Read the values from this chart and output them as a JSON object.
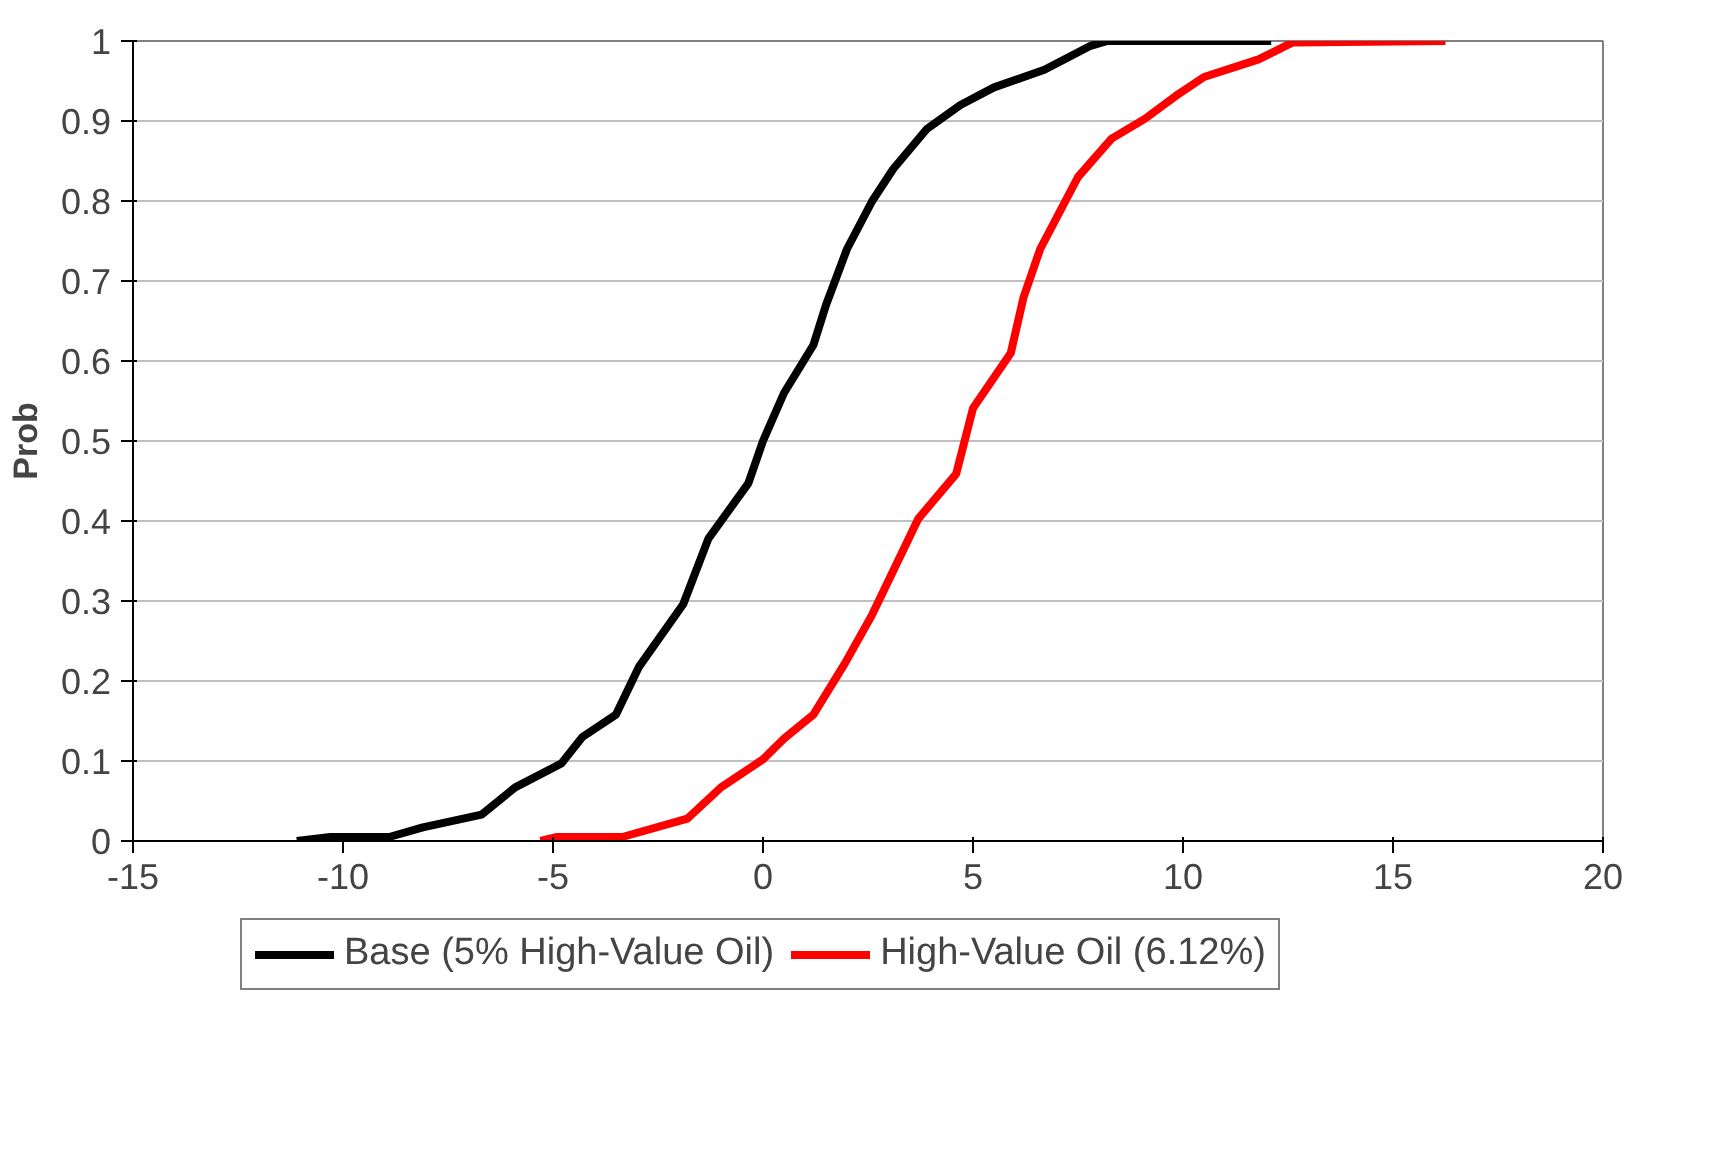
{
  "chart_data": {
    "type": "line",
    "ylabel": "Prob",
    "xlim": [
      -15,
      20
    ],
    "xticks": [
      -15,
      -10,
      -5,
      0,
      5,
      10,
      15,
      20
    ],
    "ylim": [
      0,
      1
    ],
    "yticks": [
      0,
      0.1,
      0.2,
      0.3,
      0.4,
      0.5,
      0.6,
      0.7,
      0.8,
      0.9,
      1
    ],
    "grid": "y",
    "legend": "bottom",
    "marker": "none",
    "line_style": "solid",
    "series": [
      {
        "name": "Base (5% High-Value Oil)",
        "color": "#000000",
        "x": [
          -11.1,
          -10.3,
          -8.9,
          -8.1,
          -6.7,
          -5.9,
          -4.8,
          -4.3,
          -3.5,
          -2.95,
          -1.9,
          -1.3,
          -0.35,
          0,
          0.5,
          1.2,
          1.5,
          2.0,
          2.6,
          3.1,
          3.9,
          4.7,
          5.5,
          6.7,
          7.8,
          8.2,
          12.1
        ],
        "values": [
          0,
          0.005,
          0.005,
          0.017,
          0.033,
          0.067,
          0.097,
          0.13,
          0.158,
          0.218,
          0.296,
          0.378,
          0.447,
          0.5,
          0.56,
          0.62,
          0.67,
          0.74,
          0.8,
          0.84,
          0.89,
          0.92,
          0.942,
          0.964,
          0.994,
          1,
          1
        ]
      },
      {
        "name": "High-Value Oil (6.12%)",
        "color": "#ff0000",
        "x": [
          -5.3,
          -4.9,
          -3.35,
          -1.8,
          -1.0,
          0,
          0.5,
          1.2,
          1.95,
          2.6,
          3.7,
          4.6,
          5.0,
          5.9,
          6.2,
          6.6,
          7.2,
          7.5,
          8.3,
          9.1,
          9.9,
          10.5,
          11.8,
          12.6,
          16.25
        ],
        "values": [
          0,
          0.005,
          0.005,
          0.028,
          0.067,
          0.102,
          0.128,
          0.158,
          0.222,
          0.283,
          0.403,
          0.459,
          0.541,
          0.61,
          0.679,
          0.74,
          0.8,
          0.83,
          0.878,
          0.903,
          0.934,
          0.955,
          0.977,
          0.998,
          1
        ]
      }
    ]
  }
}
